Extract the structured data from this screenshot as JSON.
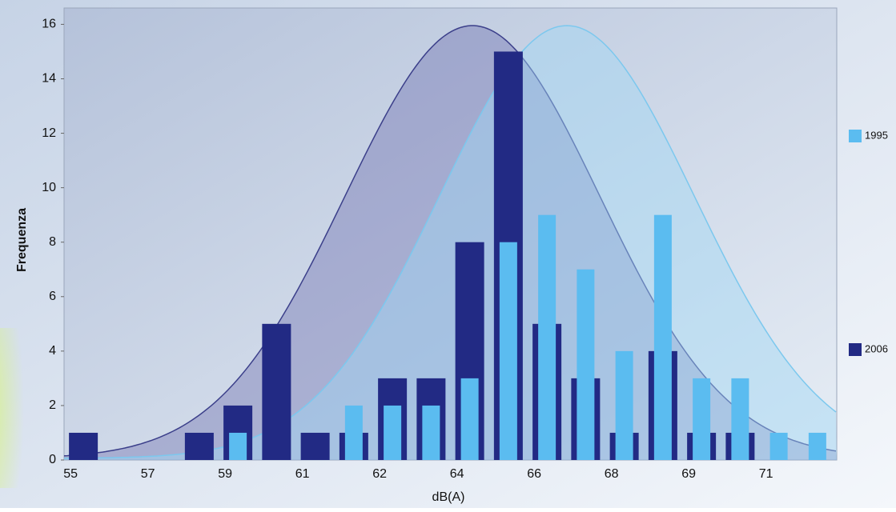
{
  "chart_data": {
    "type": "bar",
    "xlabel": "dB(A)",
    "ylabel": "Frequenza",
    "categories": [
      "55",
      null,
      "57",
      null,
      "59",
      null,
      "61",
      null,
      "62",
      null,
      "64",
      null,
      "66",
      null,
      "68",
      null,
      "69",
      null,
      "71",
      null
    ],
    "series": [
      {
        "name": "1995",
        "color": "#5bbcf0",
        "values": [
          0,
          0,
          0,
          0,
          1,
          0,
          0,
          2,
          2,
          2,
          3,
          8,
          9,
          7,
          4,
          9,
          3,
          3,
          1,
          1
        ]
      },
      {
        "name": "2006",
        "color": "#222a84",
        "values": [
          1,
          0,
          0,
          1,
          2,
          5,
          1,
          1,
          3,
          3,
          8,
          15,
          5,
          3,
          1,
          4,
          1,
          1,
          0,
          0
        ]
      }
    ],
    "ylim": [
      0,
      16.6
    ],
    "yticks": [
      0,
      2,
      4,
      6,
      8,
      10,
      12,
      14,
      16
    ],
    "grid": false,
    "legend": "right"
  }
}
